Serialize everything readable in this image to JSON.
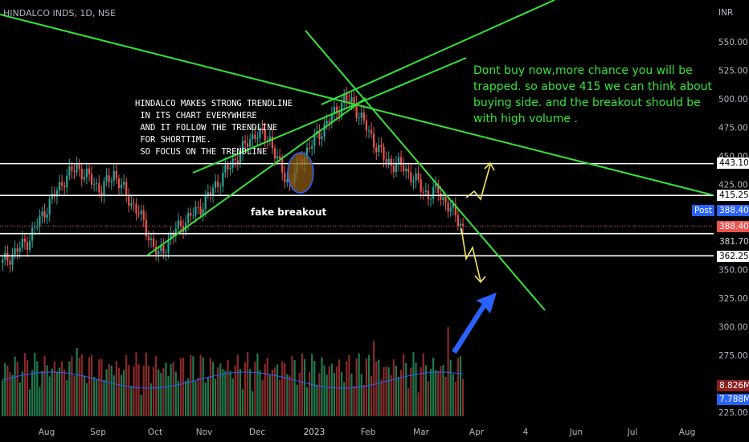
{
  "header": {
    "symbol": "HINDALCO INDS, 1D, NSE",
    "currency": "INR"
  },
  "annotations": {
    "trendline_note": "HINDALCO MAKES STRONG TRENDLINE\n IN ITS CHART EVERYWHERE\n AND IT FOLLOW THE TRENDLINE\n FOR SHORTTIME.\n SO FOCUS ON THE TRENDLINE",
    "fake_breakout": "fake breakout",
    "advice": "Dont buy now,more chance you will be trapped. so above 415 we can think about buying side. and the breakout should be with high volume ."
  },
  "badges": {
    "post_label": "Post",
    "post_price": "388.40",
    "last_price": "388.40",
    "level_443": "443.10",
    "level_415": "415.25",
    "level_381": "381.70",
    "level_362": "362.25",
    "volume_last": "8.826M",
    "volume_ma": "7.788M"
  },
  "colors": {
    "background": "#000000",
    "up": "#26a69a",
    "down": "#ef5350",
    "trendline": "#35e33a",
    "level": "#ffffff",
    "arrow_yellow": "#f5e663",
    "arrow_blue": "#2962ff",
    "volume_ma": "#2962ff",
    "badge_red": "#ef5350",
    "badge_blue": "#2962ff",
    "badge_vol_red": "#8b2020"
  },
  "chart_data": {
    "type": "candlestick",
    "title": "HINDALCO INDS, 1D, NSE",
    "y_ticks": [
      550,
      525,
      500,
      475,
      450,
      425,
      400,
      375,
      350,
      325,
      300,
      275,
      250,
      225
    ],
    "y_tick_labels": [
      "550.00",
      "525.00",
      "500.00",
      "475.00",
      "450.00",
      "425.00",
      "400.00",
      "375.00",
      "350.00",
      "325.00",
      "300.00",
      "275.00",
      "250.00",
      "225.00"
    ],
    "x_tick_labels": [
      "Aug",
      "Sep",
      "Oct",
      "Nov",
      "Dec",
      "2023",
      "Feb",
      "Mar",
      "Apr",
      "4",
      "Jun",
      "Jul",
      "Aug"
    ],
    "horizontal_levels": [
      443.1,
      415.25,
      381.7,
      362.25
    ],
    "last_price": 388.4,
    "volume_last": "8.826M",
    "volume_ma": "7.788M",
    "keypoints_close": [
      [
        0,
        356
      ],
      [
        10,
        375
      ],
      [
        18,
        405
      ],
      [
        25,
        430
      ],
      [
        30,
        440
      ],
      [
        40,
        420
      ],
      [
        45,
        435
      ],
      [
        50,
        415
      ],
      [
        55,
        400
      ],
      [
        60,
        375
      ],
      [
        63,
        362
      ],
      [
        70,
        385
      ],
      [
        80,
        405
      ],
      [
        88,
        430
      ],
      [
        95,
        450
      ],
      [
        102,
        470
      ],
      [
        108,
        465
      ],
      [
        112,
        440
      ],
      [
        116,
        425
      ],
      [
        120,
        445
      ],
      [
        128,
        470
      ],
      [
        135,
        490
      ],
      [
        138,
        500
      ],
      [
        142,
        495
      ],
      [
        148,
        470
      ],
      [
        155,
        445
      ],
      [
        162,
        440
      ],
      [
        168,
        425
      ],
      [
        172,
        415
      ],
      [
        176,
        420
      ],
      [
        180,
        405
      ],
      [
        184,
        395
      ],
      [
        186,
        388.4
      ]
    ]
  }
}
